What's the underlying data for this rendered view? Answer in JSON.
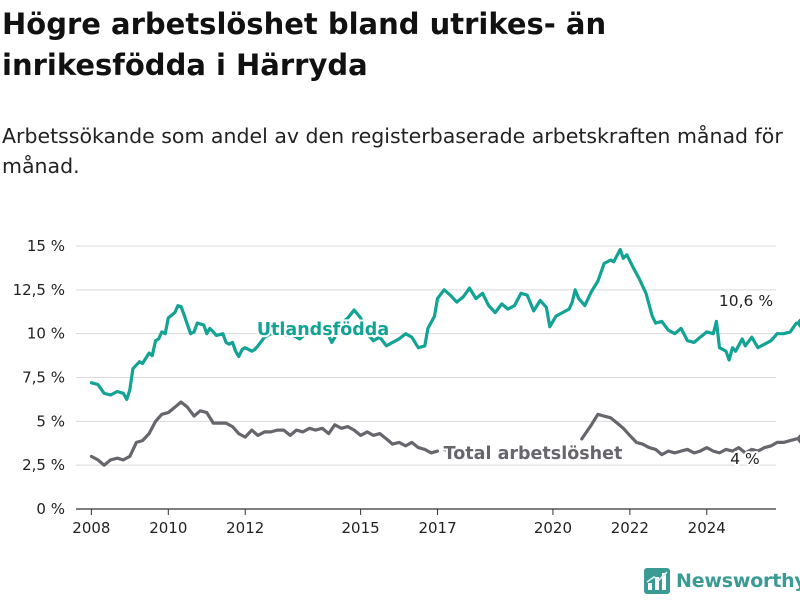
{
  "header": {
    "title": "Högre arbetslöshet bland utrikes- än inrikesfödda i Härryda",
    "subtitle": "Arbetssökande som andel av den registerbaserade arbetskraften månad för månad."
  },
  "brand": {
    "name": "Newsworthy",
    "logo_icon": "bar-chart-logo-icon",
    "color": "#3a9b94"
  },
  "chart_data": {
    "type": "line",
    "x_ticks": [
      {
        "label": "2008",
        "value": 2008.0
      },
      {
        "label": "2010",
        "value": 2010.0
      },
      {
        "label": "2012",
        "value": 2012.0
      },
      {
        "label": "2015",
        "value": 2015.0
      },
      {
        "label": "2017",
        "value": 2017.0
      },
      {
        "label": "2020",
        "value": 2020.0
      },
      {
        "label": "2022",
        "value": 2022.0
      },
      {
        "label": "2024",
        "value": 2024.0
      }
    ],
    "xlim": [
      2007.6,
      2025.8
    ],
    "ylim": [
      0,
      15
    ],
    "y_ticks": [
      {
        "label": "0 %",
        "value": 0
      },
      {
        "label": "2,5 %",
        "value": 2.5
      },
      {
        "label": "5 %",
        "value": 5
      },
      {
        "label": "7,5 %",
        "value": 7.5
      },
      {
        "label": "10 %",
        "value": 10
      },
      {
        "label": "12,5 %",
        "value": 12.5
      },
      {
        "label": "15 %",
        "value": 15
      }
    ],
    "grid": true,
    "series": [
      {
        "name": "Utlandsfödda",
        "color": "#12a394",
        "end_label": "10,6 %",
        "segments": [
          [
            [
              2008.0,
              7.2
            ],
            [
              2008.17,
              7.1
            ],
            [
              2008.33,
              6.6
            ],
            [
              2008.5,
              6.5
            ],
            [
              2008.67,
              6.7
            ],
            [
              2008.83,
              6.6
            ],
            [
              2008.92,
              6.25
            ],
            [
              2009.0,
              6.8
            ],
            [
              2009.08,
              8.0
            ],
            [
              2009.25,
              8.4
            ],
            [
              2009.33,
              8.3
            ],
            [
              2009.5,
              8.9
            ],
            [
              2009.58,
              8.75
            ],
            [
              2009.67,
              9.6
            ],
            [
              2009.75,
              9.7
            ],
            [
              2009.83,
              10.1
            ],
            [
              2009.92,
              10.0
            ],
            [
              2010.0,
              10.9
            ],
            [
              2010.17,
              11.2
            ],
            [
              2010.25,
              11.6
            ],
            [
              2010.33,
              11.55
            ],
            [
              2010.42,
              11.0
            ],
            [
              2010.5,
              10.5
            ],
            [
              2010.58,
              10.0
            ],
            [
              2010.67,
              10.1
            ],
            [
              2010.75,
              10.6
            ],
            [
              2010.92,
              10.5
            ],
            [
              2011.0,
              10.0
            ],
            [
              2011.08,
              10.3
            ],
            [
              2011.17,
              10.1
            ],
            [
              2011.25,
              9.9
            ],
            [
              2011.42,
              10.0
            ],
            [
              2011.5,
              9.5
            ],
            [
              2011.58,
              9.4
            ],
            [
              2011.67,
              9.5
            ],
            [
              2011.75,
              9.0
            ],
            [
              2011.83,
              8.7
            ],
            [
              2011.92,
              9.1
            ],
            [
              2012.0,
              9.2
            ],
            [
              2012.17,
              9.0
            ],
            [
              2012.25,
              9.1
            ],
            [
              2012.33,
              9.3
            ],
            [
              2012.5,
              9.8
            ],
            [
              2012.67,
              10.0
            ],
            [
              2012.83,
              9.9
            ],
            [
              2013.0,
              9.9
            ],
            [
              2013.17,
              10.0
            ],
            [
              2013.33,
              9.8
            ],
            [
              2013.42,
              9.7
            ],
            [
              2013.58,
              10.0
            ],
            [
              2013.75,
              10.2
            ],
            [
              2013.92,
              10.4
            ],
            [
              2014.08,
              10.3
            ],
            [
              2014.25,
              9.5
            ],
            [
              2014.33,
              9.8
            ],
            [
              2014.5,
              10.6
            ],
            [
              2014.67,
              10.9
            ],
            [
              2014.83,
              11.35
            ],
            [
              2015.0,
              10.9
            ],
            [
              2015.17,
              10.0
            ],
            [
              2015.33,
              9.6
            ],
            [
              2015.5,
              9.8
            ],
            [
              2015.67,
              9.3
            ],
            [
              2015.83,
              9.5
            ],
            [
              2016.0,
              9.7
            ],
            [
              2016.17,
              10.0
            ],
            [
              2016.33,
              9.8
            ],
            [
              2016.5,
              9.2
            ],
            [
              2016.67,
              9.3
            ],
            [
              2016.75,
              10.3
            ],
            [
              2016.92,
              11.0
            ],
            [
              2017.0,
              12.0
            ],
            [
              2017.17,
              12.5
            ],
            [
              2017.33,
              12.2
            ],
            [
              2017.5,
              11.8
            ],
            [
              2017.67,
              12.1
            ],
            [
              2017.83,
              12.6
            ],
            [
              2018.0,
              12.0
            ],
            [
              2018.17,
              12.3
            ],
            [
              2018.33,
              11.6
            ],
            [
              2018.5,
              11.2
            ],
            [
              2018.67,
              11.7
            ],
            [
              2018.83,
              11.4
            ],
            [
              2019.0,
              11.6
            ],
            [
              2019.17,
              12.3
            ],
            [
              2019.33,
              12.2
            ],
            [
              2019.5,
              11.3
            ],
            [
              2019.67,
              11.9
            ],
            [
              2019.83,
              11.5
            ],
            [
              2019.92,
              10.4
            ],
            [
              2020.08,
              11.0
            ],
            [
              2020.25,
              11.2
            ],
            [
              2020.42,
              11.4
            ],
            [
              2020.5,
              11.8
            ],
            [
              2020.58,
              12.5
            ],
            [
              2020.67,
              12.0
            ],
            [
              2020.83,
              11.6
            ],
            [
              2021.0,
              12.4
            ],
            [
              2021.17,
              13.0
            ],
            [
              2021.33,
              14.0
            ],
            [
              2021.5,
              14.2
            ],
            [
              2021.58,
              14.1
            ],
            [
              2021.75,
              14.8
            ],
            [
              2021.83,
              14.3
            ],
            [
              2021.92,
              14.5
            ],
            [
              2022.08,
              13.8
            ],
            [
              2022.25,
              13.1
            ],
            [
              2022.42,
              12.3
            ],
            [
              2022.58,
              11.0
            ],
            [
              2022.67,
              10.6
            ],
            [
              2022.83,
              10.7
            ],
            [
              2023.0,
              10.2
            ],
            [
              2023.17,
              10.0
            ],
            [
              2023.33,
              10.3
            ],
            [
              2023.5,
              9.6
            ],
            [
              2023.67,
              9.5
            ],
            [
              2023.83,
              9.8
            ],
            [
              2024.0,
              10.1
            ],
            [
              2024.17,
              10.0
            ],
            [
              2024.25,
              10.7
            ],
            [
              2024.33,
              9.2
            ],
            [
              2024.5,
              9.0
            ],
            [
              2024.58,
              8.5
            ],
            [
              2024.67,
              9.2
            ],
            [
              2024.75,
              9.0
            ],
            [
              2024.92,
              9.7
            ],
            [
              2025.0,
              9.3
            ],
            [
              2025.17,
              9.8
            ],
            [
              2025.33,
              9.2
            ],
            [
              2025.5,
              9.4
            ],
            [
              2025.67,
              9.6
            ],
            [
              2025.83,
              10.0
            ],
            [
              2026.0,
              10.0
            ],
            [
              2026.17,
              10.1
            ],
            [
              2026.33,
              10.6
            ],
            [
              2026.5,
              10.6
            ]
          ]
        ]
      },
      {
        "name": "Total arbetslöshet",
        "color": "#68666d",
        "end_label": "4 %",
        "segments": [
          [
            [
              2008.0,
              3.0
            ],
            [
              2008.17,
              2.8
            ],
            [
              2008.33,
              2.5
            ],
            [
              2008.5,
              2.8
            ],
            [
              2008.67,
              2.9
            ],
            [
              2008.83,
              2.8
            ],
            [
              2009.0,
              3.0
            ],
            [
              2009.17,
              3.8
            ],
            [
              2009.33,
              3.9
            ],
            [
              2009.5,
              4.3
            ],
            [
              2009.67,
              5.0
            ],
            [
              2009.83,
              5.4
            ],
            [
              2010.0,
              5.5
            ],
            [
              2010.17,
              5.8
            ],
            [
              2010.33,
              6.1
            ],
            [
              2010.5,
              5.8
            ],
            [
              2010.67,
              5.3
            ],
            [
              2010.83,
              5.6
            ],
            [
              2011.0,
              5.5
            ],
            [
              2011.17,
              4.9
            ],
            [
              2011.33,
              4.9
            ],
            [
              2011.5,
              4.9
            ],
            [
              2011.67,
              4.7
            ],
            [
              2011.83,
              4.3
            ],
            [
              2012.0,
              4.1
            ],
            [
              2012.17,
              4.5
            ],
            [
              2012.33,
              4.2
            ],
            [
              2012.5,
              4.4
            ],
            [
              2012.67,
              4.4
            ],
            [
              2012.83,
              4.5
            ],
            [
              2013.0,
              4.5
            ],
            [
              2013.17,
              4.2
            ],
            [
              2013.33,
              4.5
            ],
            [
              2013.5,
              4.4
            ],
            [
              2013.67,
              4.6
            ],
            [
              2013.83,
              4.5
            ],
            [
              2014.0,
              4.6
            ],
            [
              2014.17,
              4.3
            ],
            [
              2014.33,
              4.8
            ],
            [
              2014.5,
              4.6
            ],
            [
              2014.67,
              4.7
            ],
            [
              2014.83,
              4.5
            ],
            [
              2015.0,
              4.2
            ],
            [
              2015.17,
              4.4
            ],
            [
              2015.33,
              4.2
            ],
            [
              2015.5,
              4.3
            ],
            [
              2015.67,
              4.0
            ],
            [
              2015.83,
              3.7
            ],
            [
              2016.0,
              3.8
            ],
            [
              2016.17,
              3.6
            ],
            [
              2016.33,
              3.8
            ],
            [
              2016.5,
              3.5
            ],
            [
              2016.67,
              3.4
            ],
            [
              2016.83,
              3.2
            ],
            [
              2017.0,
              3.3
            ]
          ],
          [
            [
              2017.17,
              3.4
            ],
            [
              2017.33,
              3.3
            ]
          ],
          [
            [
              2020.75,
              4.0
            ],
            [
              2021.0,
              4.8
            ],
            [
              2021.17,
              5.4
            ],
            [
              2021.33,
              5.3
            ],
            [
              2021.5,
              5.2
            ],
            [
              2021.67,
              4.9
            ],
            [
              2021.83,
              4.6
            ],
            [
              2022.0,
              4.2
            ],
            [
              2022.17,
              3.8
            ],
            [
              2022.33,
              3.7
            ],
            [
              2022.5,
              3.5
            ],
            [
              2022.67,
              3.4
            ],
            [
              2022.83,
              3.1
            ],
            [
              2023.0,
              3.3
            ],
            [
              2023.17,
              3.2
            ],
            [
              2023.33,
              3.3
            ],
            [
              2023.5,
              3.4
            ],
            [
              2023.67,
              3.2
            ],
            [
              2023.83,
              3.3
            ],
            [
              2024.0,
              3.5
            ],
            [
              2024.17,
              3.3
            ],
            [
              2024.33,
              3.2
            ],
            [
              2024.5,
              3.4
            ],
            [
              2024.67,
              3.3
            ],
            [
              2024.83,
              3.5
            ],
            [
              2025.0,
              3.2
            ],
            [
              2025.17,
              3.4
            ],
            [
              2025.33,
              3.3
            ],
            [
              2025.5,
              3.5
            ],
            [
              2025.67,
              3.6
            ],
            [
              2025.83,
              3.8
            ],
            [
              2026.0,
              3.8
            ],
            [
              2026.17,
              3.9
            ],
            [
              2026.33,
              4.0
            ],
            [
              2026.5,
              4.0
            ]
          ]
        ]
      }
    ]
  }
}
